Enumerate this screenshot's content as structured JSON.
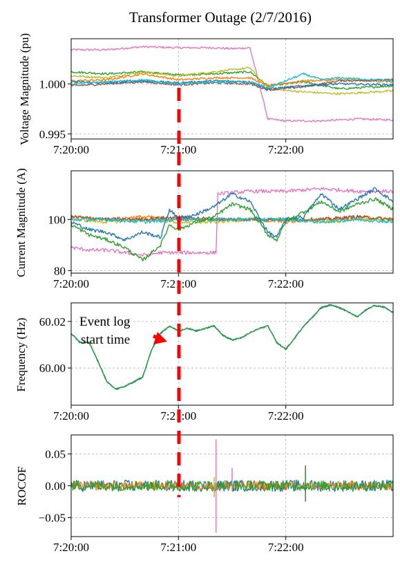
{
  "title": "Transformer Outage (2/7/2016)",
  "x_ticks": [
    "7:20:00",
    "7:21:00",
    "7:22:00"
  ],
  "x_tick_values": [
    0,
    60,
    120
  ],
  "x_range": [
    0,
    180
  ],
  "event_time": 60,
  "annotation": {
    "line1": "Event log",
    "line2": "start time"
  },
  "colors": [
    "#1f77b4",
    "#ff7f0e",
    "#2ca02c",
    "#d62728",
    "#9467bd",
    "#8c564b",
    "#e377c2",
    "#7f7f7f",
    "#bcbd22",
    "#17becf"
  ],
  "event_line_color": "#ff0000",
  "chart_data": [
    {
      "type": "line",
      "ylabel": "Voltage Magnitude (pu)",
      "ylim": [
        0.9945,
        1.0045
      ],
      "y_ticks": [
        0.995,
        1.0
      ],
      "y_tick_labels": [
        "0.995",
        "1.000"
      ],
      "grid": true,
      "series": [
        {
          "color": "#e377c2",
          "x": [
            0,
            20,
            40,
            60,
            80,
            90,
            100,
            110,
            120,
            140,
            160,
            180
          ],
          "y": [
            1.0034,
            1.0034,
            1.0037,
            1.0036,
            1.0036,
            1.0035,
            1.0036,
            0.9965,
            0.9963,
            0.9963,
            0.9965,
            0.9964
          ]
        },
        {
          "color": "#2ca02c",
          "x": [
            0,
            20,
            40,
            60,
            80,
            100,
            110,
            130,
            150,
            180
          ],
          "y": [
            1.0012,
            1.001,
            1.0012,
            1.0009,
            1.001,
            1.0012,
            0.9998,
            1.0002,
            0.9995,
            0.9998
          ]
        },
        {
          "color": "#bcbd22",
          "x": [
            0,
            20,
            40,
            60,
            80,
            100,
            110,
            130,
            150,
            180
          ],
          "y": [
            1.0008,
            1.0006,
            1.0012,
            1.0008,
            1.0012,
            1.0016,
            0.9995,
            0.9992,
            0.999,
            0.9993
          ]
        },
        {
          "color": "#ff7f0e",
          "x": [
            0,
            20,
            40,
            60,
            80,
            100,
            110,
            130,
            150,
            180
          ],
          "y": [
            1.0003,
            1.0004,
            1.001,
            1.0004,
            1.0006,
            1.0006,
            0.9998,
            1.0003,
            1.0004,
            1.0002
          ]
        },
        {
          "color": "#8c564b",
          "x": [
            0,
            20,
            40,
            60,
            80,
            100,
            110,
            130,
            150,
            180
          ],
          "y": [
            0.9998,
            1.0,
            1.0002,
            0.9999,
            1.0001,
            1.0,
            0.9994,
            0.9997,
            1.0003,
            1.0004
          ]
        },
        {
          "color": "#1f77b4",
          "x": [
            0,
            20,
            40,
            60,
            80,
            100,
            110,
            130,
            150,
            180
          ],
          "y": [
            1.0002,
            1.0001,
            1.0003,
            1.0001,
            1.0003,
            1.0002,
            0.9995,
            0.9998,
            1.0,
            0.9999
          ]
        },
        {
          "color": "#17becf",
          "x": [
            0,
            20,
            40,
            60,
            80,
            100,
            110,
            130,
            140,
            150,
            180
          ],
          "y": [
            1.0,
            1.0002,
            1.0004,
            1.0,
            1.0002,
            1.0002,
            0.9996,
            1.001,
            1.0004,
            1.0006,
            1.0003
          ]
        }
      ]
    },
    {
      "type": "line",
      "ylabel": "Current Magnitude (A)",
      "ylim": [
        79,
        119
      ],
      "y_ticks": [
        80,
        100
      ],
      "y_tick_labels": [
        "80",
        "100"
      ],
      "grid": true,
      "series": [
        {
          "color": "#e377c2",
          "x": [
            0,
            10,
            20,
            30,
            40,
            50,
            60,
            70,
            81,
            82,
            100,
            120,
            140,
            160,
            180
          ],
          "y": [
            89,
            88,
            88,
            87,
            86,
            87,
            87,
            87,
            87,
            110,
            111,
            111,
            112,
            111,
            111
          ]
        },
        {
          "color": "#ff7f0e",
          "x": [
            0,
            20,
            40,
            60,
            80,
            100,
            120,
            140,
            160,
            180
          ],
          "y": [
            101,
            100,
            101,
            100,
            100,
            100,
            99,
            100,
            101,
            100
          ]
        },
        {
          "color": "#bcbd22",
          "x": [
            0,
            20,
            40,
            60,
            80,
            100,
            120,
            140,
            160,
            180
          ],
          "y": [
            100,
            99,
            100,
            99,
            99,
            100,
            100,
            99,
            100,
            100
          ]
        },
        {
          "color": "#8c564b",
          "x": [
            0,
            20,
            40,
            60,
            80,
            100,
            120,
            140,
            160,
            180
          ],
          "y": [
            101,
            100,
            100,
            101,
            100,
            100,
            100,
            100,
            101,
            100
          ]
        },
        {
          "color": "#17becf",
          "x": [
            0,
            20,
            40,
            60,
            80,
            100,
            120,
            140,
            160,
            180
          ],
          "y": [
            100,
            100,
            99,
            100,
            100,
            100,
            100,
            99,
            100,
            99
          ]
        },
        {
          "color": "#1f77b4",
          "x": [
            0,
            10,
            20,
            30,
            40,
            50,
            55,
            60,
            70,
            80,
            90,
            100,
            110,
            115,
            120,
            130,
            140,
            150,
            160,
            170,
            180
          ],
          "y": [
            99,
            96,
            95,
            92,
            95,
            93,
            104,
            100,
            102,
            105,
            110,
            107,
            95,
            93,
            100,
            101,
            110,
            104,
            108,
            112,
            107
          ]
        },
        {
          "color": "#2ca02c",
          "x": [
            0,
            10,
            20,
            30,
            40,
            50,
            55,
            60,
            70,
            80,
            90,
            100,
            110,
            115,
            120,
            130,
            140,
            150,
            160,
            170,
            180
          ],
          "y": [
            98,
            94,
            92,
            89,
            84,
            90,
            98,
            96,
            99,
            101,
            106,
            104,
            94,
            92,
            99,
            103,
            107,
            103,
            106,
            108,
            104
          ]
        }
      ]
    },
    {
      "type": "line",
      "ylabel": "Frequency (Hz)",
      "ylim": [
        59.984,
        60.028
      ],
      "y_ticks": [
        60.0,
        60.02
      ],
      "y_tick_labels": [
        "60.00",
        "60.02"
      ],
      "grid": true,
      "series": [
        {
          "color": "#1f77b4",
          "x": [
            0,
            5,
            10,
            15,
            20,
            25,
            30,
            35,
            40,
            45,
            50,
            55,
            60,
            65,
            70,
            75,
            80,
            85,
            90,
            95,
            100,
            105,
            110,
            115,
            120,
            125,
            130,
            135,
            140,
            145,
            150,
            155,
            160,
            165,
            170,
            175,
            180
          ],
          "y": [
            60.015,
            60.011,
            60.011,
            60.003,
            59.994,
            59.991,
            59.992,
            59.994,
            59.996,
            60.008,
            60.015,
            60.018,
            60.016,
            60.017,
            60.016,
            60.017,
            60.018,
            60.014,
            60.012,
            60.013,
            60.015,
            60.017,
            60.018,
            60.011,
            60.008,
            60.013,
            60.018,
            60.022,
            60.026,
            60.027,
            60.026,
            60.024,
            60.022,
            60.025,
            60.027,
            60.026,
            60.024
          ]
        },
        {
          "color": "#2ca02c",
          "x": [
            0,
            5,
            10,
            15,
            20,
            25,
            30,
            35,
            40,
            45,
            50,
            55,
            60,
            65,
            70,
            75,
            80,
            85,
            90,
            95,
            100,
            105,
            110,
            115,
            120,
            125,
            130,
            135,
            140,
            145,
            150,
            155,
            160,
            165,
            170,
            175,
            180
          ],
          "y": [
            60.0148,
            60.0108,
            60.0112,
            60.0028,
            59.9942,
            59.9908,
            59.9922,
            59.9942,
            59.9962,
            60.0078,
            60.0148,
            60.0182,
            60.0158,
            60.0172,
            60.0158,
            60.0172,
            60.0182,
            60.0138,
            60.0122,
            60.0128,
            60.0152,
            60.0168,
            60.0182,
            60.0108,
            60.0082,
            60.0128,
            60.0182,
            60.0218,
            60.0262,
            60.0272,
            60.0258,
            60.0242,
            60.0218,
            60.0252,
            60.0268,
            60.0262,
            60.0238
          ]
        }
      ]
    },
    {
      "type": "line",
      "ylabel": "ROCOF",
      "ylim": [
        -0.08,
        0.08
      ],
      "y_ticks": [
        -0.05,
        0.0,
        0.05
      ],
      "y_tick_labels": [
        "−0.05",
        "0.00",
        "0.05"
      ],
      "grid": true,
      "series": [
        {
          "color": "#1f77b4",
          "amp": 0.009
        },
        {
          "color": "#ff7f0e",
          "amp": 0.007
        },
        {
          "color": "#2ca02c",
          "amp": 0.008
        }
      ],
      "spikes": [
        {
          "color": "#e377c2",
          "x": 81,
          "y_min": -0.074,
          "y_max": 0.073
        },
        {
          "color": "#e377c2",
          "x": 90,
          "y_min": -0.008,
          "y_max": 0.028
        },
        {
          "color": "#bcbd22",
          "x": 80,
          "y_min": -0.018,
          "y_max": 0.014
        },
        {
          "color": "#8c564b",
          "x": 131,
          "y_min": -0.025,
          "y_max": 0.032
        },
        {
          "color": "#2ca02c",
          "x": 131,
          "y_min": -0.012,
          "y_max": 0.028
        }
      ]
    }
  ]
}
